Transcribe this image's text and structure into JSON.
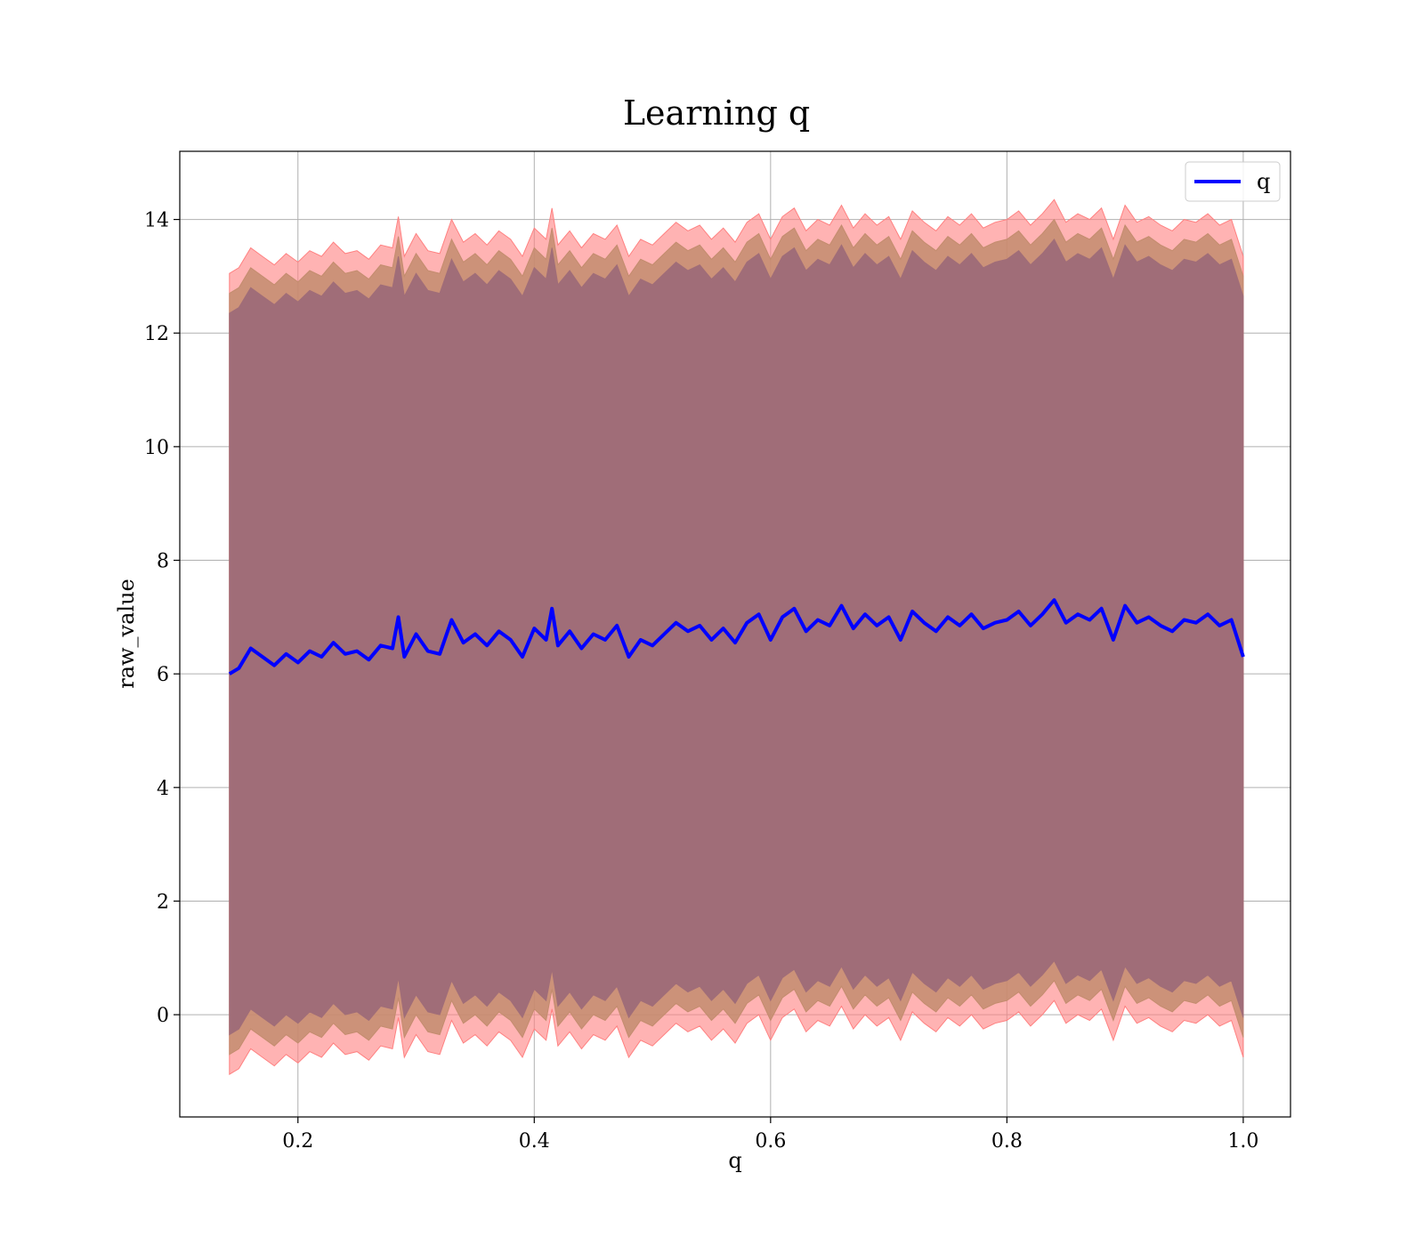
{
  "chart_data": {
    "type": "line",
    "title": "Learning q",
    "xlabel": "q",
    "ylabel": "raw_value",
    "xlim": [
      0.1,
      1.04
    ],
    "ylim": [
      -1.8,
      15.2
    ],
    "xticks": [
      0.2,
      0.4,
      0.6,
      0.8,
      1.0
    ],
    "xtick_labels": [
      "0.2",
      "0.4",
      "0.6",
      "0.8",
      "1.0"
    ],
    "yticks": [
      0,
      2,
      4,
      6,
      8,
      10,
      12,
      14
    ],
    "ytick_labels": [
      "0",
      "2",
      "4",
      "6",
      "8",
      "10",
      "12",
      "14"
    ],
    "grid": true,
    "legend": {
      "placement": "top-right",
      "entries": [
        "q"
      ]
    },
    "colors": {
      "line": "#0000ff",
      "band_outer": "#ff8080",
      "band_mid": "#c38c6e",
      "band_inner": "#a06d78"
    },
    "series": [
      {
        "name": "q",
        "x": [
          0.142,
          0.15,
          0.16,
          0.17,
          0.18,
          0.19,
          0.2,
          0.21,
          0.22,
          0.23,
          0.24,
          0.25,
          0.26,
          0.27,
          0.28,
          0.285,
          0.29,
          0.3,
          0.31,
          0.32,
          0.33,
          0.34,
          0.35,
          0.36,
          0.37,
          0.38,
          0.39,
          0.4,
          0.41,
          0.415,
          0.42,
          0.43,
          0.44,
          0.45,
          0.46,
          0.47,
          0.48,
          0.49,
          0.5,
          0.51,
          0.52,
          0.53,
          0.54,
          0.55,
          0.56,
          0.57,
          0.58,
          0.59,
          0.6,
          0.61,
          0.62,
          0.63,
          0.64,
          0.65,
          0.66,
          0.67,
          0.68,
          0.69,
          0.7,
          0.71,
          0.72,
          0.73,
          0.74,
          0.75,
          0.76,
          0.77,
          0.78,
          0.79,
          0.8,
          0.81,
          0.82,
          0.83,
          0.84,
          0.85,
          0.86,
          0.87,
          0.88,
          0.89,
          0.9,
          0.91,
          0.92,
          0.93,
          0.94,
          0.95,
          0.96,
          0.97,
          0.98,
          0.99,
          1.0
        ],
        "y": [
          6.0,
          6.1,
          6.45,
          6.3,
          6.15,
          6.35,
          6.2,
          6.4,
          6.3,
          6.55,
          6.35,
          6.4,
          6.25,
          6.5,
          6.45,
          7.0,
          6.3,
          6.7,
          6.4,
          6.35,
          6.95,
          6.55,
          6.7,
          6.5,
          6.75,
          6.6,
          6.3,
          6.8,
          6.6,
          7.15,
          6.5,
          6.75,
          6.45,
          6.7,
          6.6,
          6.85,
          6.3,
          6.6,
          6.5,
          6.7,
          6.9,
          6.75,
          6.85,
          6.6,
          6.8,
          6.55,
          6.9,
          7.05,
          6.6,
          7.0,
          7.15,
          6.75,
          6.95,
          6.85,
          7.2,
          6.8,
          7.05,
          6.85,
          7.0,
          6.6,
          7.1,
          6.9,
          6.75,
          7.0,
          6.85,
          7.05,
          6.8,
          6.9,
          6.95,
          7.1,
          6.85,
          7.05,
          7.3,
          6.9,
          7.05,
          6.95,
          7.15,
          6.6,
          7.2,
          6.9,
          7.0,
          6.85,
          6.75,
          6.95,
          6.9,
          7.05,
          6.85,
          6.95,
          6.3
        ]
      }
    ]
  }
}
